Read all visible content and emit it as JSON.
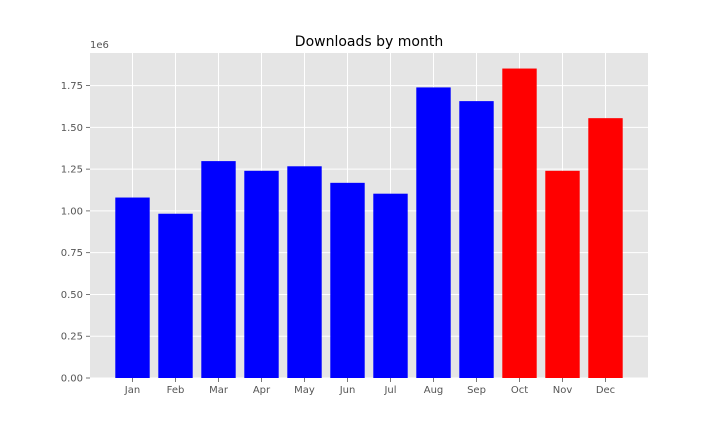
{
  "chart_data": {
    "type": "bar",
    "title": "Downloads by month",
    "xlabel": "",
    "ylabel": "",
    "categories": [
      "Jan",
      "Feb",
      "Mar",
      "Apr",
      "May",
      "Jun",
      "Jul",
      "Aug",
      "Sep",
      "Oct",
      "Nov",
      "Dec"
    ],
    "values": [
      1080000,
      983000,
      1298000,
      1240000,
      1267000,
      1168000,
      1103000,
      1739000,
      1657000,
      1852000,
      1240000,
      1555000
    ],
    "colors": [
      "#0000ff",
      "#0000ff",
      "#0000ff",
      "#0000ff",
      "#0000ff",
      "#0000ff",
      "#0000ff",
      "#0000ff",
      "#0000ff",
      "#ff0000",
      "#ff0000",
      "#ff0000"
    ],
    "ylim": [
      0,
      1945000
    ],
    "yticks": [
      0,
      250000,
      500000,
      750000,
      1000000,
      1250000,
      1500000,
      1750000
    ],
    "ytick_labels": [
      "0.00",
      "0.25",
      "0.50",
      "0.75",
      "1.00",
      "1.25",
      "1.50",
      "1.75"
    ],
    "y_multiplier": "1e6",
    "grid": true,
    "background": "#e5e5e5",
    "grid_color": "#ffffff"
  }
}
